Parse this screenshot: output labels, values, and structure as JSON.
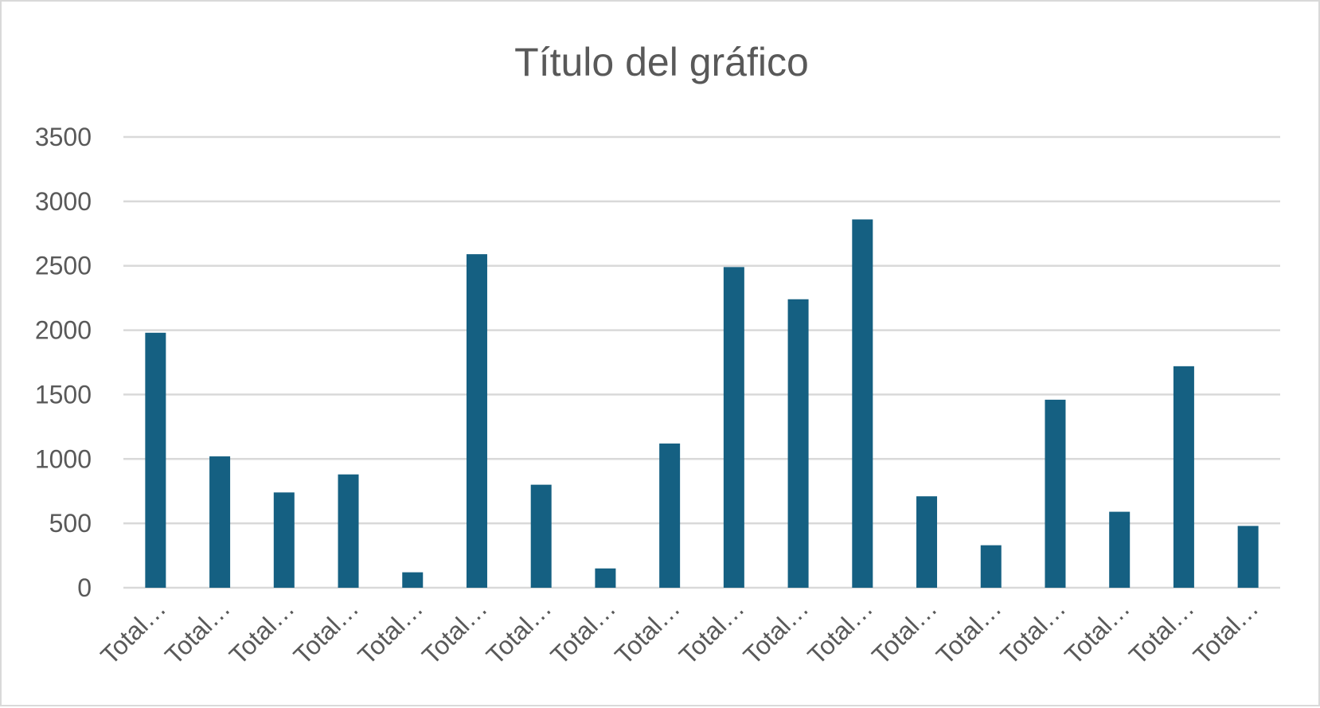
{
  "chart_data": {
    "type": "bar",
    "title": "Título del gráfico",
    "xlabel": "",
    "ylabel": "",
    "ylim": [
      0,
      3500
    ],
    "yticks": [
      "0",
      "500",
      "1000",
      "1500",
      "2000",
      "2500",
      "3000",
      "3500"
    ],
    "grid": true,
    "legend": "none",
    "bar_color": "#156082",
    "categories": [
      "Total…",
      "Total…",
      "Total…",
      "Total…",
      "Total…",
      "Total…",
      "Total…",
      "Total…",
      "Total…",
      "Total…",
      "Total…",
      "Total…",
      "Total…",
      "Total…",
      "Total…",
      "Total…",
      "Total…",
      "Total…"
    ],
    "values": [
      1980,
      1020,
      740,
      880,
      120,
      2590,
      800,
      150,
      1120,
      2490,
      2240,
      2860,
      710,
      330,
      1460,
      590,
      1720,
      480
    ]
  }
}
